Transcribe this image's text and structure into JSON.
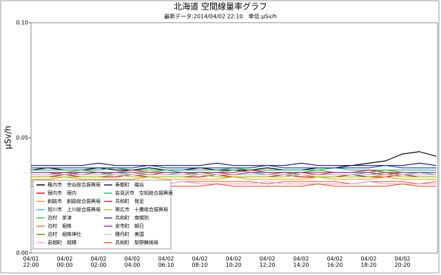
{
  "chart_data": {
    "type": "line",
    "title": "北海道 空間線量率グラフ",
    "subtitle": "最新データ:2014/04/02 22:10　単位:μSv/h",
    "y_label": "μSv/h",
    "ylim": [
      0,
      0.1
    ],
    "yticks": [
      {
        "value": 0,
        "label": "0.00"
      },
      {
        "value": 0.05,
        "label": "0.05"
      },
      {
        "value": 0.1,
        "label": "0.10"
      }
    ],
    "categories": [
      "04/01\n22:00",
      null,
      "04/02\n00:00",
      null,
      "04/02\n02:00",
      null,
      "04/02\n04:00",
      null,
      "04/02\n06:10",
      null,
      "04/02\n08:10",
      null,
      "04/02\n10:20",
      null,
      "04/02\n12:20",
      null,
      "04/02\n14:20",
      null,
      "04/02\n16:20",
      null,
      "04/02\n18:20",
      null,
      "04/02\n20:20",
      null,
      null
    ],
    "series": [
      {
        "name": "稚内市　宗谷総合振興局",
        "color": "#000000",
        "values": [
          0.036,
          0.037,
          0.036,
          0.036,
          0.037,
          0.036,
          0.036,
          0.037,
          0.036,
          0.036,
          0.037,
          0.036,
          0.036,
          0.036,
          0.037,
          0.036,
          0.036,
          0.037,
          0.037,
          0.038,
          0.039,
          0.04,
          0.043,
          0.044,
          0.042
        ]
      },
      {
        "name": "宿内市　宿内",
        "color": "#d01010",
        "values": [
          0.033,
          0.033,
          0.034,
          0.033,
          0.033,
          0.033,
          0.034,
          0.033,
          0.033,
          0.033,
          0.033,
          0.034,
          0.033,
          0.033,
          0.033,
          0.034,
          0.033,
          0.033,
          0.033,
          0.034,
          0.033,
          0.033,
          0.034,
          0.033,
          0.033
        ]
      },
      {
        "name": "釧路市　釧路総合振興局",
        "color": "#f0a020",
        "values": [
          0.032,
          0.032,
          0.033,
          0.032,
          0.032,
          0.032,
          0.032,
          0.033,
          0.032,
          0.032,
          0.032,
          0.032,
          0.033,
          0.032,
          0.032,
          0.032,
          0.032,
          0.033,
          0.032,
          0.032,
          0.032,
          0.033,
          0.032,
          0.032,
          0.032
        ]
      },
      {
        "name": "旭川市　上川総合振興局",
        "color": "#20c0e0",
        "values": [
          0.034,
          0.034,
          0.035,
          0.034,
          0.034,
          0.035,
          0.034,
          0.034,
          0.034,
          0.035,
          0.034,
          0.034,
          0.034,
          0.035,
          0.034,
          0.034,
          0.035,
          0.034,
          0.034,
          0.034,
          0.035,
          0.034,
          0.034,
          0.035,
          0.034
        ]
      },
      {
        "name": "泊村　茶津",
        "color": "#40c040",
        "values": [
          0.035,
          0.035,
          0.035,
          0.036,
          0.035,
          0.035,
          0.035,
          0.035,
          0.036,
          0.035,
          0.035,
          0.035,
          0.036,
          0.035,
          0.035,
          0.035,
          0.035,
          0.036,
          0.035,
          0.035,
          0.035,
          0.036,
          0.035,
          0.035,
          0.035
        ]
      },
      {
        "name": "泊村　堀株",
        "color": "#f07040",
        "values": [
          0.031,
          0.031,
          0.031,
          0.03,
          0.031,
          0.031,
          0.031,
          0.031,
          0.03,
          0.031,
          0.031,
          0.031,
          0.031,
          0.031,
          0.03,
          0.031,
          0.031,
          0.031,
          0.031,
          0.03,
          0.031,
          0.031,
          0.031,
          0.03,
          0.031
        ]
      },
      {
        "name": "泊村　堀株神社",
        "color": "#808020",
        "values": [
          0.034,
          0.034,
          0.034,
          0.034,
          0.035,
          0.034,
          0.034,
          0.034,
          0.034,
          0.034,
          0.035,
          0.034,
          0.034,
          0.034,
          0.034,
          0.035,
          0.034,
          0.034,
          0.034,
          0.034,
          0.034,
          0.035,
          0.034,
          0.034,
          0.034
        ]
      },
      {
        "name": "岩越町　越樽",
        "color": "#f0a0f0",
        "values": [
          0.03,
          0.03,
          0.03,
          0.031,
          0.03,
          0.03,
          0.03,
          0.03,
          0.03,
          0.031,
          0.03,
          0.03,
          0.03,
          0.03,
          0.031,
          0.03,
          0.03,
          0.03,
          0.03,
          0.03,
          0.031,
          0.03,
          0.03,
          0.03,
          0.03
        ]
      },
      {
        "name": "寿都町　磯谷",
        "color": "#101080",
        "values": [
          0.038,
          0.038,
          0.038,
          0.038,
          0.039,
          0.038,
          0.038,
          0.038,
          0.038,
          0.038,
          0.038,
          0.039,
          0.038,
          0.038,
          0.038,
          0.038,
          0.039,
          0.038,
          0.038,
          0.038,
          0.038,
          0.038,
          0.038,
          0.039,
          0.038
        ]
      },
      {
        "name": "岩見沢市　空知総合振興局",
        "color": "#20c060",
        "values": [
          0.036,
          0.036,
          0.036,
          0.036,
          0.036,
          0.037,
          0.036,
          0.036,
          0.036,
          0.036,
          0.036,
          0.036,
          0.037,
          0.036,
          0.036,
          0.036,
          0.036,
          0.036,
          0.037,
          0.036,
          0.036,
          0.036,
          0.036,
          0.036,
          0.036
        ]
      },
      {
        "name": "共和町　発足",
        "color": "#e02020",
        "values": [
          0.035,
          0.035,
          0.035,
          0.035,
          0.035,
          0.035,
          0.036,
          0.035,
          0.035,
          0.035,
          0.035,
          0.035,
          0.035,
          0.036,
          0.035,
          0.035,
          0.035,
          0.035,
          0.035,
          0.035,
          0.036,
          0.035,
          0.035,
          0.035,
          0.035
        ]
      },
      {
        "name": "帯広市　十勝総合振興局",
        "color": "#a0d020",
        "values": [
          0.033,
          0.033,
          0.033,
          0.033,
          0.033,
          0.034,
          0.033,
          0.033,
          0.033,
          0.033,
          0.034,
          0.033,
          0.033,
          0.033,
          0.033,
          0.033,
          0.034,
          0.033,
          0.033,
          0.033,
          0.033,
          0.034,
          0.033,
          0.033,
          0.033
        ]
      },
      {
        "name": "共和町　南幌別",
        "color": "#2040e0",
        "values": [
          0.037,
          0.037,
          0.037,
          0.037,
          0.037,
          0.037,
          0.037,
          0.038,
          0.037,
          0.037,
          0.037,
          0.037,
          0.037,
          0.037,
          0.038,
          0.037,
          0.037,
          0.037,
          0.037,
          0.037,
          0.037,
          0.038,
          0.037,
          0.037,
          0.037
        ]
      },
      {
        "name": "余市町　朝日",
        "color": "#c020c0",
        "values": [
          0.035,
          0.035,
          0.034,
          0.035,
          0.035,
          0.035,
          0.035,
          0.034,
          0.035,
          0.035,
          0.035,
          0.035,
          0.034,
          0.035,
          0.035,
          0.035,
          0.035,
          0.034,
          0.035,
          0.035,
          0.035,
          0.034,
          0.035,
          0.035,
          0.035
        ]
      },
      {
        "name": "積丹町　美国",
        "color": "#c8c8c8",
        "values": [
          0.034,
          0.034,
          0.034,
          0.034,
          0.034,
          0.034,
          0.034,
          0.034,
          0.034,
          0.034,
          0.034,
          0.034,
          0.034,
          0.034,
          0.034,
          0.034,
          0.034,
          0.034,
          0.034,
          0.034,
          0.034,
          0.034,
          0.034,
          0.034,
          0.034
        ]
      },
      {
        "name": "共和町　梨野舞納局",
        "color": "#f06030",
        "values": [
          0.029,
          0.029,
          0.029,
          0.029,
          0.03,
          0.029,
          0.029,
          0.029,
          0.029,
          0.029,
          0.029,
          0.03,
          0.029,
          0.029,
          0.029,
          0.029,
          0.029,
          0.03,
          0.029,
          0.029,
          0.029,
          0.029,
          0.03,
          0.029,
          0.029
        ]
      }
    ]
  }
}
